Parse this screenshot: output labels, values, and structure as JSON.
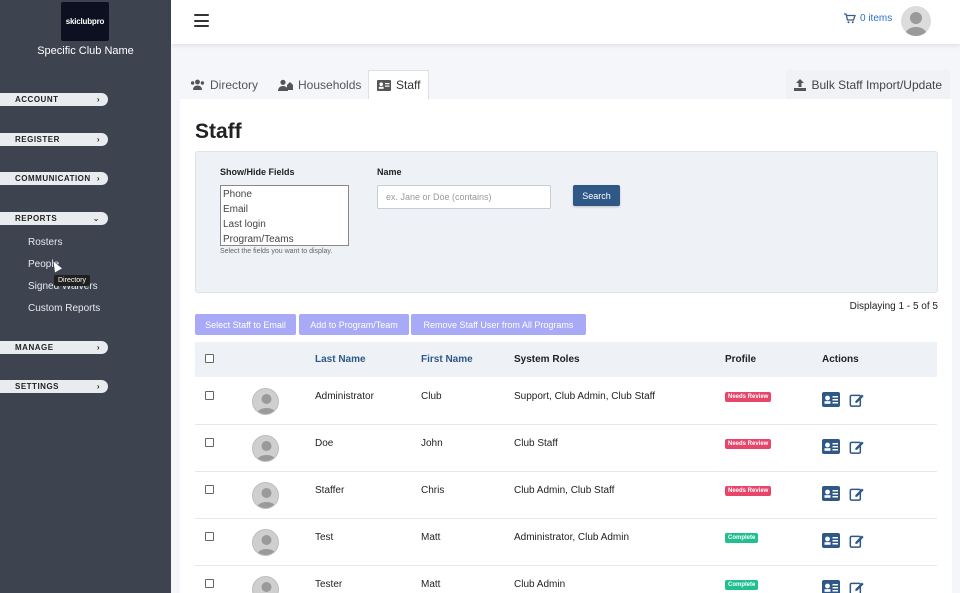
{
  "sidebar": {
    "logo_text": "skiclubpro",
    "club_name": "Specific Club Name",
    "sections": {
      "account": "ACCOUNT",
      "register": "REGISTER",
      "communication": "COMMUNICATION",
      "reports": "REPORTS",
      "manage": "MANAGE",
      "settings": "SETTINGS"
    },
    "report_items": {
      "rosters": "Rosters",
      "people": "People",
      "waivers": "Signed Waivers",
      "custom": "Custom Reports"
    },
    "tooltip": "Directory"
  },
  "topbar": {
    "cart_label": "0 items"
  },
  "tabs": {
    "directory": "Directory",
    "households": "Households",
    "staff": "Staff",
    "bulk": "Bulk Staff Import/Update"
  },
  "page": {
    "title": "Staff",
    "filter": {
      "fields_label": "Show/Hide Fields",
      "fields_options": [
        "Phone",
        "Email",
        "Last login",
        "Program/Teams"
      ],
      "fields_help": "Select the fields you want to display.",
      "name_label": "Name",
      "name_placeholder": "ex. Jane or Doe (contains)",
      "search_label": "Search"
    },
    "displaying": "Displaying 1 - 5 of 5",
    "actions": {
      "email": "Select Staff to Email",
      "add": "Add to Program/Team",
      "remove": "Remove Staff User from All Programs"
    }
  },
  "table": {
    "headers": {
      "last_name": "Last Name",
      "first_name": "First Name",
      "roles": "System Roles",
      "profile": "Profile",
      "actions": "Actions"
    },
    "rows": [
      {
        "last": "Administrator",
        "first": "Club",
        "roles": "Support, Club Admin, Club Staff",
        "status": "Needs Review"
      },
      {
        "last": "Doe",
        "first": "John",
        "roles": "Club Staff",
        "status": "Needs Review"
      },
      {
        "last": "Staffer",
        "first": "Chris",
        "roles": "Club Admin, Club Staff",
        "status": "Needs Review"
      },
      {
        "last": "Test",
        "first": "Matt",
        "roles": "Administrator, Club Admin",
        "status": "Complete"
      },
      {
        "last": "Tester",
        "first": "Matt",
        "roles": "Club Admin",
        "status": "Complete"
      }
    ]
  },
  "colors": {
    "sidebar_bg": "#3d4450",
    "primary": "#2f5887",
    "action_button": "#a8a9f7",
    "needs_review": "#e8456b",
    "complete": "#1fbf8f"
  }
}
